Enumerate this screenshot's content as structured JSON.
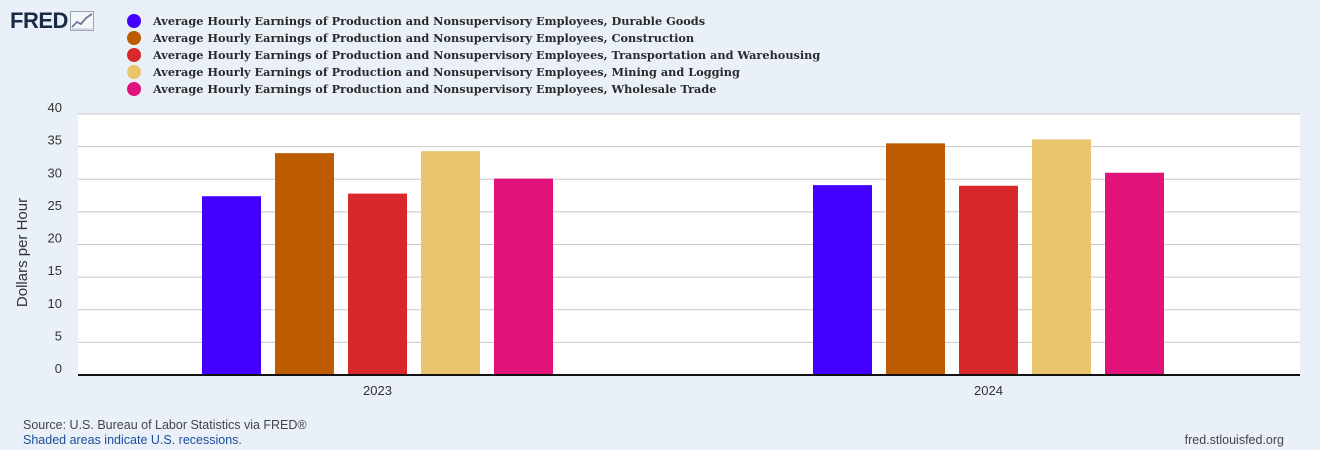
{
  "logo": {
    "text": "FRED"
  },
  "colors": {
    "background": "#eaf0f8",
    "plot_background": "#ffffff",
    "grid": "#c8c8c8",
    "axis": "#111111",
    "link": "#1d4e9b"
  },
  "chart_data": {
    "type": "bar",
    "categories": [
      "2023",
      "2024"
    ],
    "series": [
      {
        "name": "Average Hourly Earnings of Production and Nonsupervisory Employees, Durable Goods",
        "color": "#4400ff",
        "values": [
          27.4,
          29.1
        ]
      },
      {
        "name": "Average Hourly Earnings of Production and Nonsupervisory Employees, Construction",
        "color": "#bc5b00",
        "values": [
          34.0,
          35.5
        ]
      },
      {
        "name": "Average Hourly Earnings of Production and Nonsupervisory Employees, Transportation and Warehousing",
        "color": "#d9282c",
        "values": [
          27.8,
          29.0
        ]
      },
      {
        "name": "Average Hourly Earnings of Production and Nonsupervisory Employees, Mining and Logging",
        "color": "#e8c46c",
        "values": [
          34.3,
          36.1
        ]
      },
      {
        "name": "Average Hourly Earnings of Production and Nonsupervisory Employees, Wholesale Trade",
        "color": "#e0137a",
        "values": [
          30.1,
          31.0
        ]
      }
    ],
    "ylabel": "Dollars per Hour",
    "ylim": [
      0,
      40
    ],
    "yticks": [
      "0",
      "5",
      "10",
      "15",
      "20",
      "25",
      "30",
      "35",
      "40"
    ],
    "grid": true,
    "legend": "top-left"
  },
  "footer": {
    "source": "Source: U.S. Bureau of Labor Statistics via FRED®",
    "recession_note": "Shaded areas indicate U.S. recessions.",
    "site": "fred.stlouisfed.org"
  }
}
